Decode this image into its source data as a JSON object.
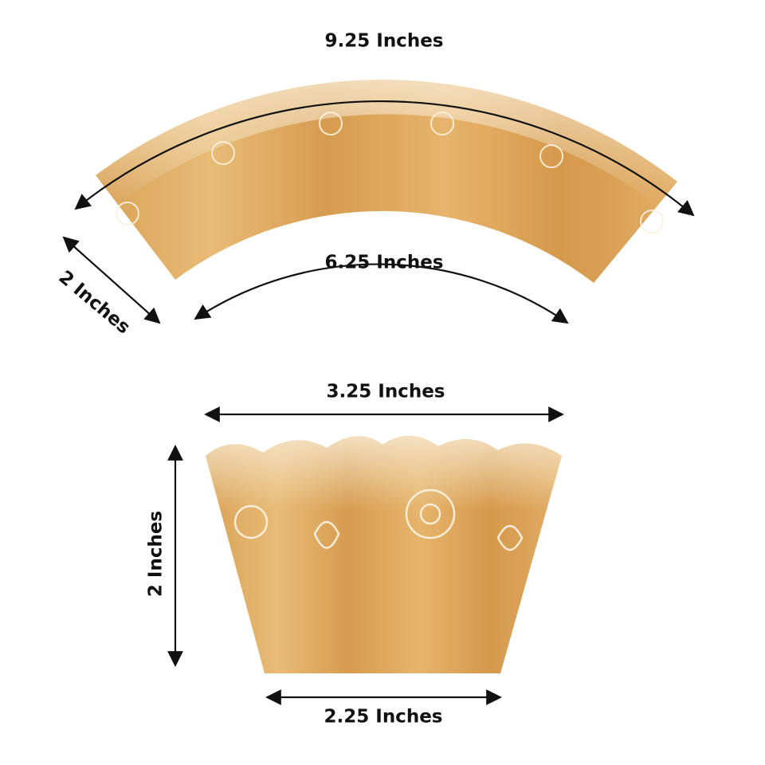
{
  "labels": {
    "outer_length": "9.25 Inches",
    "inner_length": "6.25 Inches",
    "flat_height": "2 Inches",
    "top_width": "3.25 Inches",
    "wrapped_height": "2 Inches",
    "bottom_width": "2.25 Inches"
  }
}
